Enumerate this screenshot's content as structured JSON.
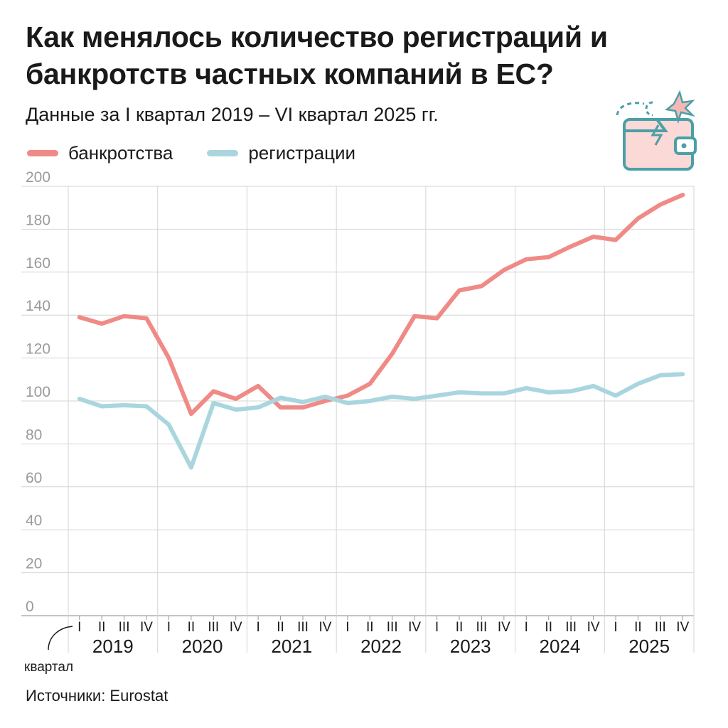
{
  "header": {
    "title": "Как менялось количество регистраций и банкротств частных компаний в ЕС?",
    "subtitle": "Данные за I квартал 2019 – VI квартал 2025 гг."
  },
  "legend": [
    {
      "label": "банкротства",
      "color": "#f08a87"
    },
    {
      "label": "регистрации",
      "color": "#a9d6de"
    }
  ],
  "icon": "wallet-icon",
  "footer": {
    "source": "Источники: Eurostat"
  },
  "chart_data": {
    "type": "line",
    "title": "Как менялось количество регистраций и банкротств частных компаний в ЕС?",
    "xlabel": "квартал",
    "ylabel": "",
    "ylim": [
      0,
      200
    ],
    "yticks": [
      0,
      20,
      40,
      60,
      80,
      100,
      120,
      140,
      160,
      180,
      200
    ],
    "grid": true,
    "legend_position": "top-left",
    "years": [
      "2019",
      "2020",
      "2021",
      "2022",
      "2023",
      "2024",
      "2025"
    ],
    "quarters": [
      "I",
      "II",
      "III",
      "IV"
    ],
    "categories": [
      "2019 I",
      "2019 II",
      "2019 III",
      "2019 IV",
      "2020 I",
      "2020 II",
      "2020 III",
      "2020 IV",
      "2021 I",
      "2021 II",
      "2021 III",
      "2021 IV",
      "2022 I",
      "2022 II",
      "2022 III",
      "2022 IV",
      "2023 I",
      "2023 II",
      "2023 III",
      "2023 IV",
      "2024 I",
      "2024 II",
      "2024 III",
      "2024 IV",
      "2025 I",
      "2025 II",
      "2025 III",
      "2025 IV"
    ],
    "series": [
      {
        "name": "банкротства",
        "color": "#f08a87",
        "values": [
          139,
          136,
          139.5,
          138.5,
          120,
          94,
          104.5,
          101,
          107,
          97,
          97,
          100,
          102.5,
          108,
          122,
          139.5,
          138.5,
          151.5,
          153.5,
          161,
          166,
          167,
          172,
          176.5,
          175,
          185,
          191.5,
          196
        ]
      },
      {
        "name": "регистрации",
        "color": "#a9d6de",
        "values": [
          101,
          97.5,
          98,
          97.5,
          89,
          69,
          99,
          96,
          97,
          101.5,
          99.5,
          102,
          99,
          100,
          102,
          101,
          102.5,
          104,
          103.5,
          103.5,
          106,
          104,
          104.5,
          107,
          102.5,
          108,
          112,
          112.5
        ]
      }
    ]
  }
}
